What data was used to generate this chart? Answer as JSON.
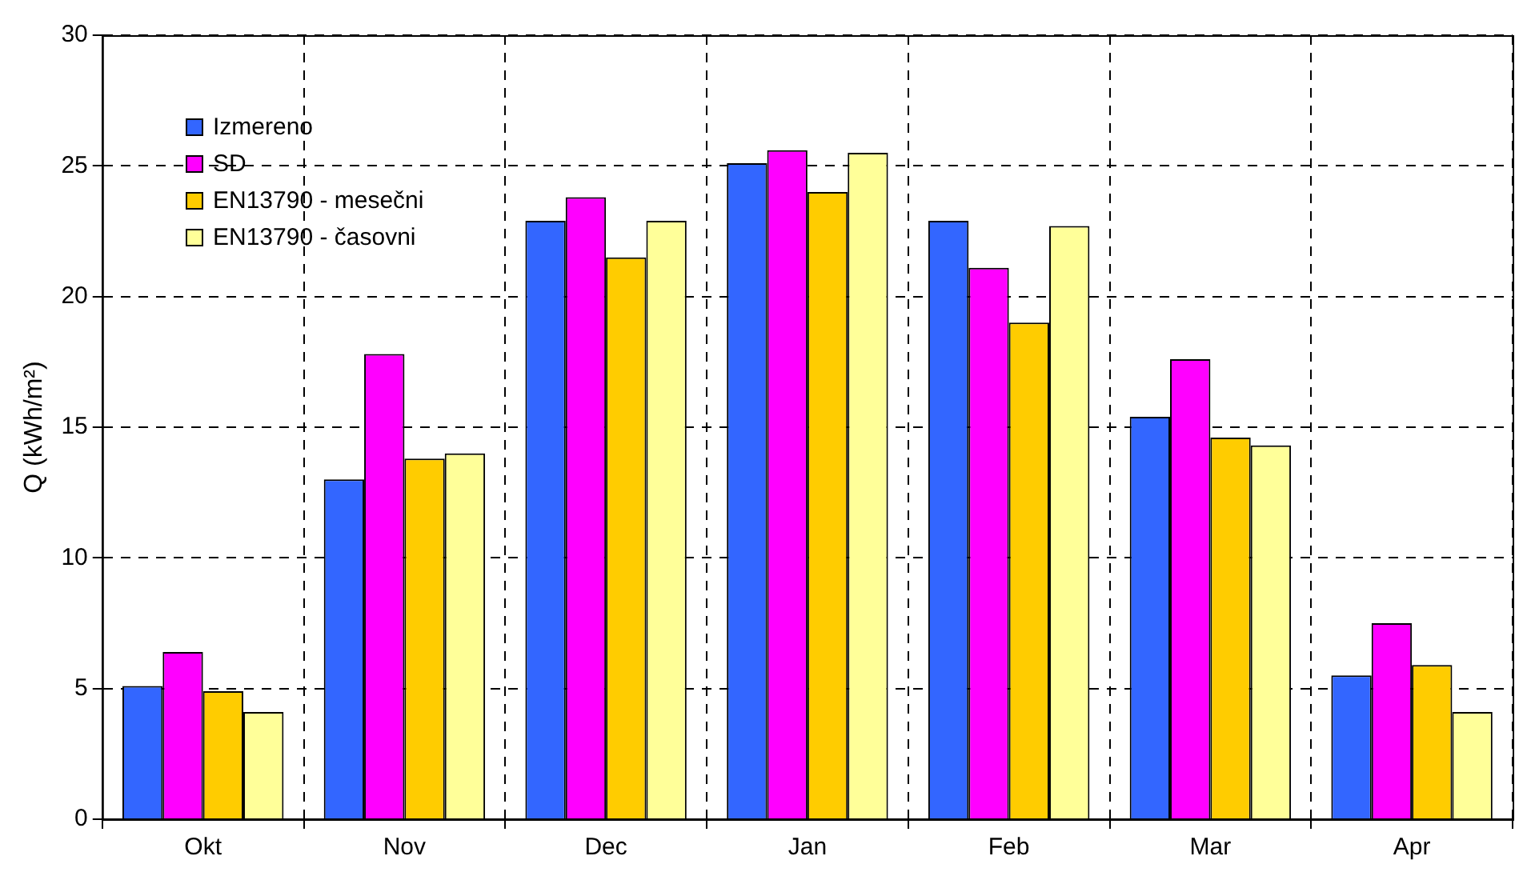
{
  "chart_data": {
    "type": "bar",
    "ylabel": "Q (kWh/m²)",
    "categories": [
      "Okt",
      "Nov",
      "Dec",
      "Jan",
      "Feb",
      "Mar",
      "Apr"
    ],
    "series": [
      {
        "name": "Izmereno",
        "color": "#3366ff",
        "values": [
          5.1,
          13.0,
          22.9,
          25.1,
          22.9,
          15.4,
          5.5
        ]
      },
      {
        "name": "SD",
        "color": "#ff00ff",
        "values": [
          6.4,
          17.8,
          23.8,
          25.6,
          21.1,
          17.6,
          7.5
        ]
      },
      {
        "name": "EN13790 - mesečni",
        "color": "#ffcc00",
        "values": [
          4.9,
          13.8,
          21.5,
          24.0,
          19.0,
          14.6,
          5.9
        ]
      },
      {
        "name": "EN13790 - časovni",
        "color": "#ffff99",
        "values": [
          4.1,
          14.0,
          22.9,
          25.5,
          22.7,
          14.3,
          4.1
        ]
      }
    ],
    "ylim": [
      0,
      30
    ],
    "yticks": [
      0,
      5,
      10,
      15,
      20,
      25,
      30
    ],
    "grid": true,
    "legend": "top left"
  }
}
